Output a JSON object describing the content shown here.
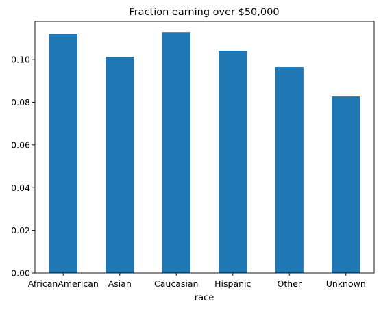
{
  "chart_data": {
    "type": "bar",
    "title": "Fraction earning over $50,000",
    "xlabel": "race",
    "ylabel": "",
    "categories": [
      "AfricanAmerican",
      "Asian",
      "Caucasian",
      "Hispanic",
      "Other",
      "Unknown"
    ],
    "values": [
      0.1122,
      0.1013,
      0.1128,
      0.1042,
      0.0965,
      0.0827
    ],
    "ylim": [
      0,
      0.118
    ],
    "yticks": [
      0.0,
      0.02,
      0.04,
      0.06,
      0.08,
      0.1
    ],
    "ytick_labels": [
      "0.00",
      "0.02",
      "0.04",
      "0.06",
      "0.08",
      "0.10"
    ],
    "bar_color": "#1f77b4",
    "grid": false,
    "legend": "none"
  }
}
